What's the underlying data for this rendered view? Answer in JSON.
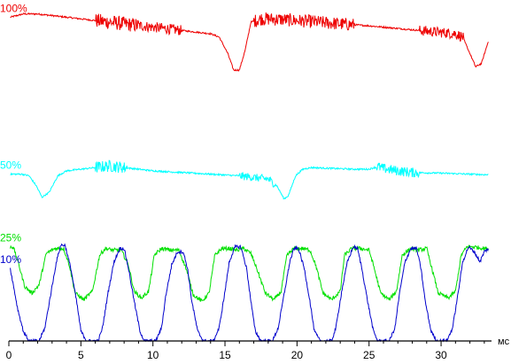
{
  "chart_data": {
    "type": "line",
    "title": "",
    "xlabel": "",
    "ylabel": "",
    "x_unit": "мс",
    "xlim": [
      0,
      33.5
    ],
    "ylim": [
      0,
      100
    ],
    "x_ticks": [
      0,
      5,
      10,
      15,
      20,
      25,
      30
    ],
    "x_tick_labels": [
      "0",
      "5",
      "10",
      "15",
      "20",
      "25",
      "30"
    ],
    "grid": false,
    "legend": "none",
    "series": [
      {
        "name": "100%",
        "color": "#ee0000",
        "x": [
          0.1,
          1,
          2,
          3,
          4,
          5,
          6,
          7,
          8,
          9,
          10,
          11,
          12,
          13,
          14,
          14.6,
          15.2,
          15.6,
          16,
          16.4,
          16.8,
          17.5,
          18,
          19,
          20,
          21,
          22,
          23,
          24,
          25,
          26,
          27,
          28,
          29,
          30,
          31,
          31.5,
          32,
          32.4,
          32.8,
          33.3
        ],
        "y": [
          98,
          99,
          99,
          98.5,
          98,
          97.5,
          97,
          96.5,
          96,
          95.5,
          95,
          94.5,
          94,
          93.5,
          93,
          92,
          87,
          82,
          82,
          88,
          96.5,
          97.5,
          97.5,
          97.3,
          97,
          96.7,
          96.3,
          96,
          95.7,
          95.4,
          95,
          94.6,
          94.2,
          93.8,
          93.4,
          93,
          92,
          87,
          83,
          84,
          91
        ],
        "noise": [
          [
            6,
            9,
            2.2
          ],
          [
            9,
            12,
            1.6
          ],
          [
            17,
            24,
            2.0
          ],
          [
            28.5,
            30.5,
            1.6
          ],
          [
            30.5,
            31.6,
            1.6
          ]
        ]
      },
      {
        "name": "50%",
        "color": "#00ffff",
        "x": [
          0.1,
          0.9,
          1.4,
          1.9,
          2.3,
          2.8,
          3.4,
          4,
          5,
          6,
          7,
          8,
          10,
          12,
          14,
          16,
          17,
          18,
          18.6,
          19.1,
          19.4,
          19.9,
          20.4,
          21,
          22,
          24,
          25,
          25.6,
          26,
          27,
          28,
          30,
          32,
          33.3
        ],
        "y": [
          50.5,
          50.5,
          50,
          47,
          43.5,
          45,
          50,
          51.5,
          52,
          52.5,
          53,
          52.5,
          51.5,
          51,
          50.5,
          50,
          49.5,
          49,
          47,
          43,
          44,
          50,
          52,
          52.5,
          52.3,
          52,
          52,
          52.8,
          52.2,
          51.5,
          51,
          50.8,
          50.5,
          50.3
        ],
        "noise": [
          [
            6,
            8.2,
            1.8
          ],
          [
            16,
            18.5,
            1.2
          ],
          [
            25.5,
            28.5,
            1.5
          ]
        ]
      },
      {
        "name": "25%",
        "color": "#00e000",
        "x": [
          0.1,
          0.3,
          0.7,
          1.1,
          1.6,
          2.1,
          2.6,
          3.2,
          3.8,
          4.2,
          4.6,
          5.2,
          5.8,
          6.3,
          6.7,
          7.2,
          7.8,
          8.3,
          8.7,
          9.2,
          9.7,
          10.1,
          10.6,
          11.2,
          11.8,
          12.3,
          12.8,
          13.4,
          13.9,
          14.3,
          14.8,
          15.3,
          15.8,
          16.3,
          16.8,
          17.2,
          17.8,
          18.4,
          18.9,
          19.3,
          19.8,
          20.4,
          20.9,
          21.3,
          21.8,
          22.4,
          23.0,
          23.3,
          23.8,
          24.4,
          25.0,
          25.3,
          25.8,
          26.4,
          26.9,
          27.3,
          27.9,
          28.4,
          29.0,
          29.3,
          29.8,
          30.5,
          31.0,
          31.4,
          31.8,
          32.3,
          33.0,
          33.3
        ],
        "y": [
          28.5,
          28.5,
          23,
          16.5,
          14.5,
          17,
          26.5,
          28,
          28,
          23,
          14.5,
          12.5,
          15,
          26,
          28,
          27.5,
          27.5,
          23,
          15,
          13,
          15,
          26,
          28,
          27.5,
          27.5,
          22,
          14,
          12,
          14.5,
          26,
          28,
          28,
          27.5,
          28,
          26.5,
          22,
          14.5,
          12.5,
          15,
          26,
          28,
          28,
          27.5,
          23,
          14.5,
          12.5,
          15,
          26,
          28,
          28,
          27.5,
          23,
          14.5,
          12.5,
          15,
          26,
          28,
          27.5,
          28,
          23,
          14.5,
          13,
          15,
          26,
          28.5,
          28.5,
          28,
          28
        ],
        "noise": [
          [
            0.1,
            33.3,
            0.6
          ]
        ]
      },
      {
        "name": "10%",
        "color": "#0000cc",
        "x": [
          0.1,
          0.6,
          1.0,
          1.4,
          1.8,
          2.1,
          2.5,
          2.9,
          3.3,
          3.6,
          3.9,
          4.3,
          4.7,
          5.0,
          5.4,
          5.8,
          6.2,
          6.5,
          6.9,
          7.3,
          7.7,
          8.0,
          8.3,
          8.7,
          9.1,
          9.4,
          9.8,
          10.2,
          10.6,
          10.9,
          11.3,
          11.7,
          12.1,
          12.4,
          12.7,
          13.1,
          13.5,
          13.8,
          14.2,
          14.6,
          15.0,
          15.3,
          15.7,
          16.1,
          16.5,
          16.8,
          17.1,
          17.5,
          17.9,
          18.3,
          18.7,
          19.1,
          19.5,
          19.8,
          20.1,
          20.5,
          20.9,
          21.2,
          21.6,
          22.0,
          22.4,
          22.7,
          23.1,
          23.5,
          23.9,
          24.2,
          24.5,
          24.9,
          25.3,
          25.6,
          26.0,
          26.4,
          26.8,
          27.1,
          27.5,
          27.9,
          28.3,
          28.6,
          28.9,
          29.3,
          29.7,
          30.0,
          30.4,
          30.8,
          31.2,
          31.5,
          31.9,
          32.3,
          32.7,
          33.0,
          33.3
        ],
        "y": [
          22,
          10,
          3,
          0,
          0,
          0,
          4,
          14,
          24,
          29,
          29,
          22,
          12,
          3,
          0,
          0,
          0,
          4,
          15,
          24,
          28,
          28,
          22,
          12,
          3,
          0,
          0,
          0,
          4,
          14,
          23,
          27,
          27,
          22,
          12,
          3,
          0,
          0,
          0,
          4,
          15,
          24,
          28.5,
          28.5,
          22,
          12,
          3,
          0,
          0,
          0,
          4,
          14,
          24,
          28,
          28,
          22,
          12,
          3,
          0,
          0,
          0,
          4,
          15,
          24,
          28.5,
          28,
          22,
          12,
          3,
          0,
          0,
          0,
          4,
          14,
          24,
          28,
          28,
          22,
          12,
          3,
          0,
          0,
          0,
          4,
          15,
          24,
          28.5,
          27,
          24,
          27,
          28
        ],
        "noise": [
          [
            0.1,
            33.3,
            0.5
          ]
        ]
      }
    ]
  }
}
